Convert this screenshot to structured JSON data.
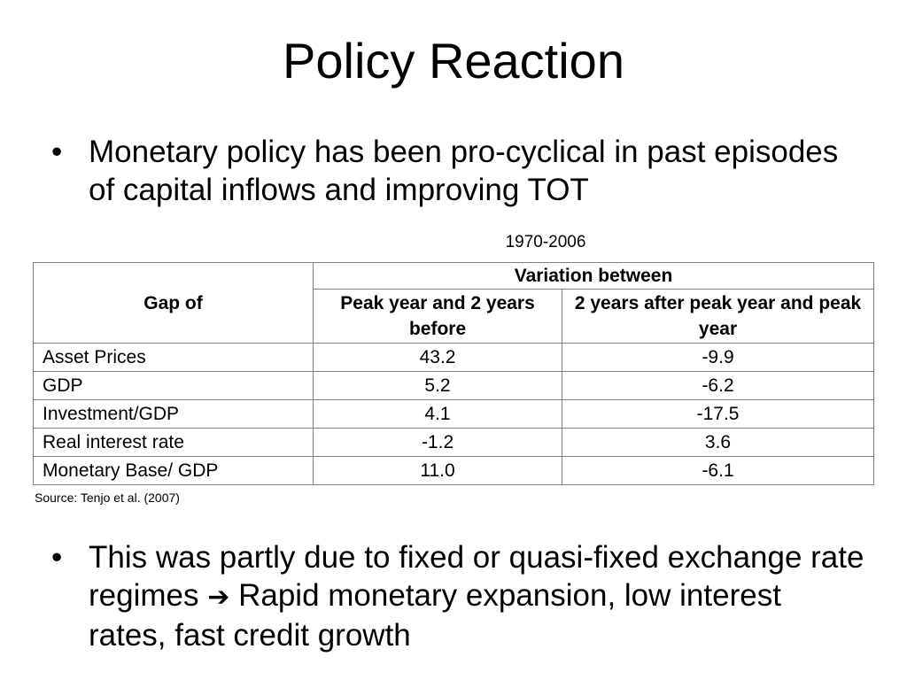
{
  "slide": {
    "title": "Policy Reaction",
    "bullet_char": "•",
    "bullets": [
      "Monetary policy has been pro-cyclical in past episodes of capital inflows and improving TOT",
      {
        "before": "This was partly due to fixed or quasi-fixed exchange rate regimes",
        "arrow": "➔",
        "after": "Rapid monetary expansion, low interest rates, fast credit growth"
      }
    ]
  },
  "table": {
    "period": "1970-2006",
    "header_gap": "Gap of",
    "header_variation": "Variation between",
    "col1": "Peak year and 2 years before",
    "col2": "2 years after peak year and peak year",
    "rows": [
      {
        "label": "Asset Prices",
        "v1": "43.2",
        "v2": "-9.9"
      },
      {
        "label": "GDP",
        "v1": "5.2",
        "v2": "-6.2"
      },
      {
        "label": "Investment/GDP",
        "v1": "4.1",
        "v2": "-17.5"
      },
      {
        "label": "Real interest rate",
        "v1": "-1.2",
        "v2": "3.6"
      },
      {
        "label": "Monetary Base/ GDP",
        "v1": "11.0",
        "v2": "-6.1"
      }
    ],
    "source": "Source: Tenjo et al. (2007)"
  }
}
